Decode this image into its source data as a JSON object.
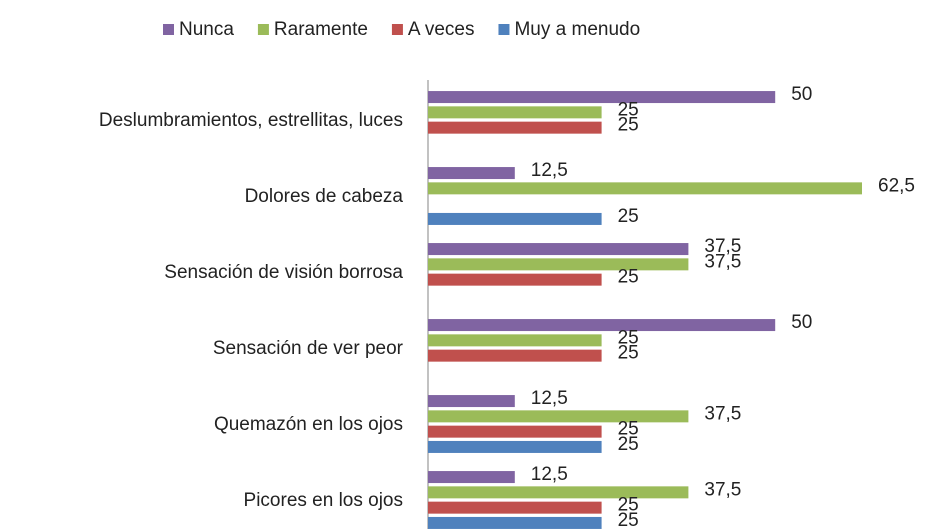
{
  "chart_data": {
    "type": "bar",
    "orientation": "horizontal",
    "categories": [
      "Deslumbramientos, estrellitas, luces",
      "Dolores de cabeza",
      "Sensación de visión borrosa",
      "Sensación de ver peor",
      "Quemazón en los ojos",
      "Picores en los ojos"
    ],
    "series": [
      {
        "name": "Nunca",
        "color": "#8064a2",
        "values": [
          50,
          12.5,
          37.5,
          50,
          12.5,
          12.5
        ],
        "value_labels": [
          "50",
          "12,5",
          "37,5",
          "50",
          "12,5",
          "12,5"
        ]
      },
      {
        "name": "Raramente",
        "color": "#9bbb59",
        "values": [
          25,
          62.5,
          37.5,
          25,
          37.5,
          37.5
        ],
        "value_labels": [
          "25",
          "62,5",
          "37,5",
          "25",
          "37,5",
          "37,5"
        ]
      },
      {
        "name": "A veces",
        "color": "#c0504d",
        "values": [
          25,
          null,
          25,
          25,
          25,
          25
        ],
        "value_labels": [
          "25",
          null,
          "25",
          "25",
          "25",
          "25"
        ]
      },
      {
        "name": "Muy a menudo",
        "color": "#4f81bd",
        "values": [
          null,
          25,
          null,
          null,
          25,
          25
        ],
        "value_labels": [
          null,
          "25",
          null,
          null,
          "25",
          "25"
        ]
      }
    ],
    "legend": "top"
  }
}
